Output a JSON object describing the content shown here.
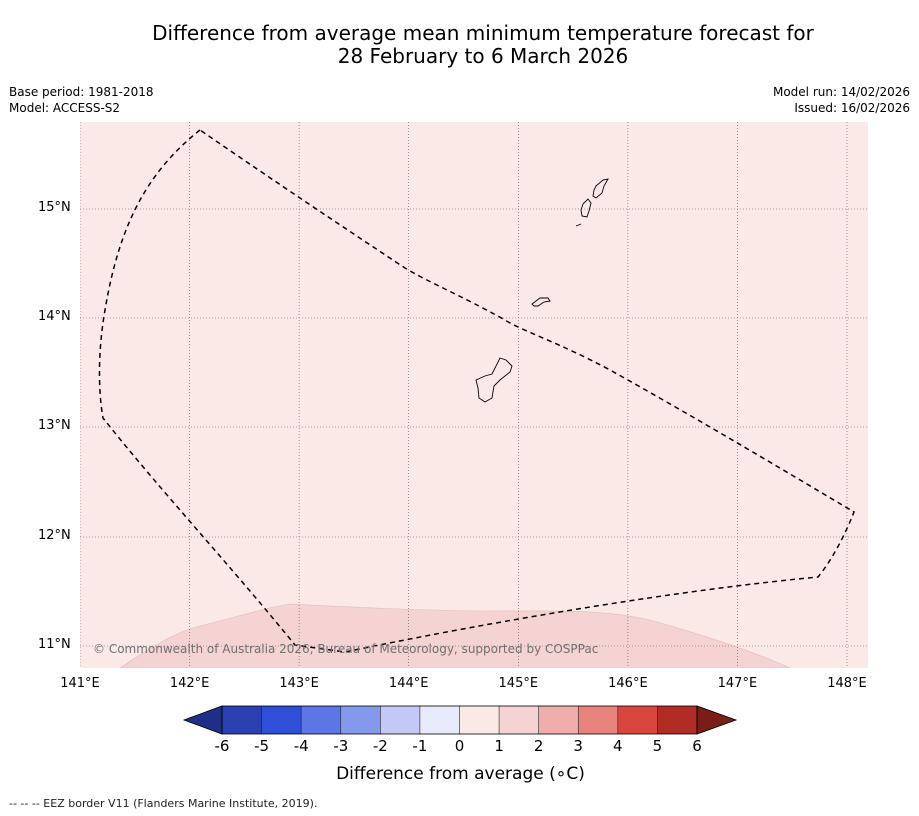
{
  "title": {
    "line1": "Difference from average mean minimum temperature forecast for",
    "line2": "28 February to 6 March 2026"
  },
  "meta": {
    "base_period": "Base period: 1981-2018",
    "model": "Model: ACCESS-S2",
    "model_run": "Model run: 14/02/2026",
    "issued": "Issued: 16/02/2026"
  },
  "map": {
    "lat_labels": [
      "15°N",
      "14°N",
      "13°N",
      "12°N",
      "11°N"
    ],
    "lon_labels": [
      "141°E",
      "142°E",
      "143°E",
      "144°E",
      "145°E",
      "146°E",
      "147°E",
      "148°E"
    ],
    "background_category": "0 to 1",
    "background_color": "#fbe9e8",
    "warm_region_category": "1 to 2",
    "warm_region_color": "#f5d3d2",
    "eez_line_style": "dashed",
    "copyright": "© Commonwealth of Australia 2026, Bureau of Meteorology, supported by COSPPac"
  },
  "colorbar": {
    "ticks": [
      "-6",
      "-5",
      "-4",
      "-3",
      "-2",
      "-1",
      "0",
      "1",
      "2",
      "3",
      "4",
      "5",
      "6"
    ],
    "colors": [
      "#2940b0",
      "#2f4fd8",
      "#5c76e6",
      "#8499ec",
      "#c1c9f4",
      "#e6eafb",
      "#fbe9e8",
      "#f5d3d2",
      "#efaeab",
      "#e8827d",
      "#d9463e",
      "#b02c25"
    ],
    "under_color": "#1f2f88",
    "over_color": "#7a1c18",
    "label": "Difference from average (∘C)"
  },
  "footnote": "-- -- -- EEZ border V11 (Flanders Marine Institute, 2019)."
}
